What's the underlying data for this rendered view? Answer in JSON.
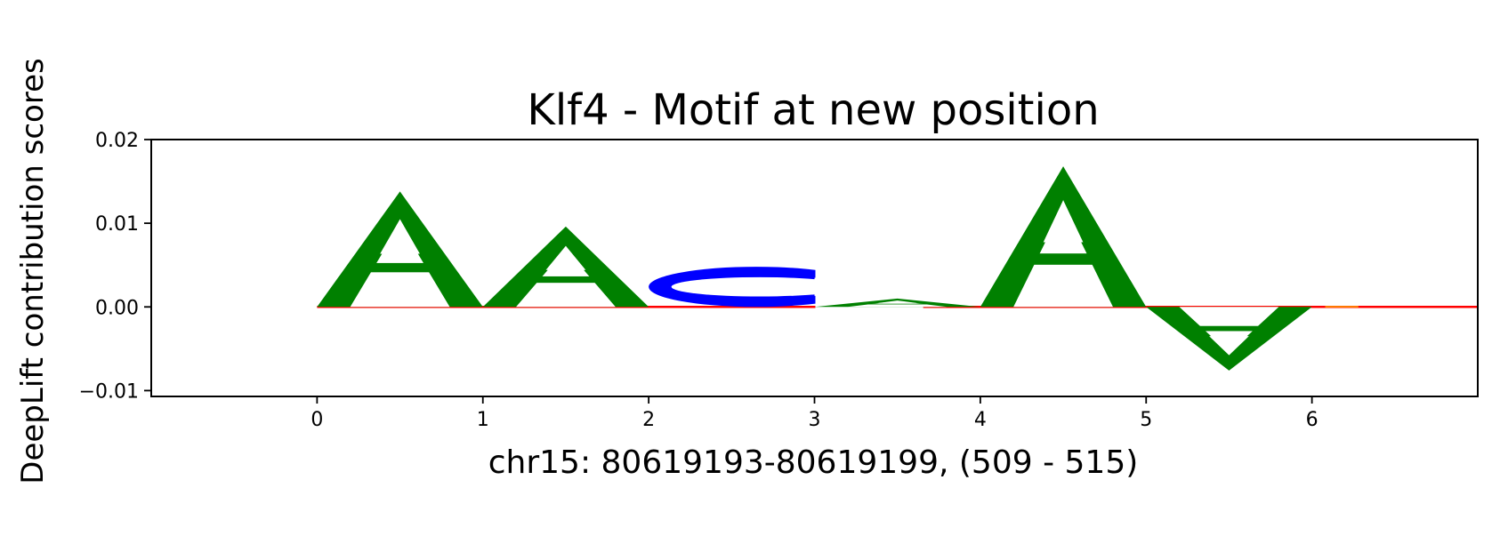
{
  "chart_data": {
    "type": "sequence-logo",
    "title": "Klf4 - Motif at new position",
    "xlabel": "chr15: 80619193-80619199, (509 - 515)",
    "ylabel": "DeepLift contribution scores",
    "xlim": [
      -1.0,
      7.0
    ],
    "ylim": [
      -0.0107,
      0.02
    ],
    "xticks": [
      0,
      1,
      2,
      3,
      4,
      5,
      6
    ],
    "xtick_labels": [
      "0",
      "1",
      "2",
      "3",
      "4",
      "5",
      "6"
    ],
    "yticks": [
      -0.01,
      0.0,
      0.01,
      0.02
    ],
    "ytick_labels": [
      "−0.01",
      "0.00",
      "0.01",
      "0.02"
    ],
    "baseline_color": "#ff0000",
    "letter_colors": {
      "A": "#008000",
      "C": "#0000ff",
      "G": "#ffa500",
      "T": "#ff0000"
    },
    "positions": [
      {
        "position": 0,
        "letter": "A",
        "value": 0.0138
      },
      {
        "position": 1,
        "letter": "A",
        "value": 0.0096
      },
      {
        "position": 2,
        "letter": "C",
        "value": 0.0048
      },
      {
        "position": 3,
        "letter": "A",
        "value": 0.001
      },
      {
        "position": 4,
        "letter": "A",
        "value": 0.0168
      },
      {
        "position": 5,
        "letter": "A",
        "value": -0.0076
      },
      {
        "position": 6,
        "letter": "G",
        "value": 0.0001
      }
    ]
  }
}
